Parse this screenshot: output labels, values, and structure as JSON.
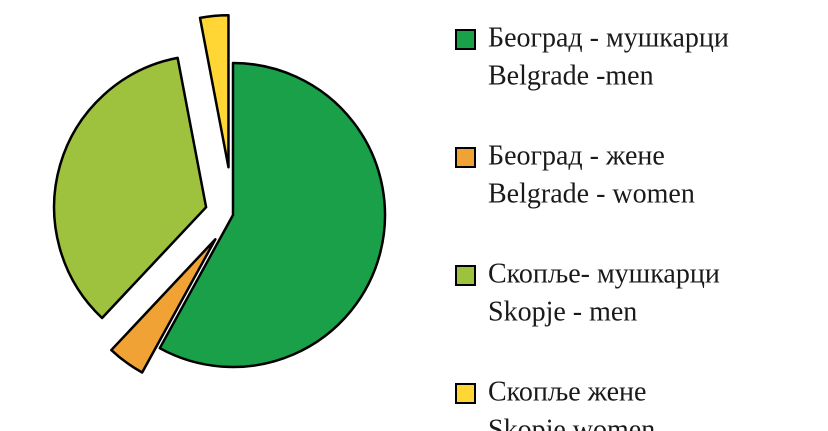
{
  "chart_data": {
    "type": "pie",
    "categories": [
      "Београд - мушкарци",
      "Београд - жене",
      "Скопље- мушкарци",
      "Скопље  жене"
    ],
    "categories_en": [
      "Belgrade -men",
      "Belgrade - women",
      "Skopje - men",
      "Skopje women"
    ],
    "values": [
      58,
      4,
      35,
      3
    ],
    "colors": [
      "#1ba04a",
      "#f0a334",
      "#9fc23e",
      "#ffd633"
    ],
    "legend": "right"
  }
}
